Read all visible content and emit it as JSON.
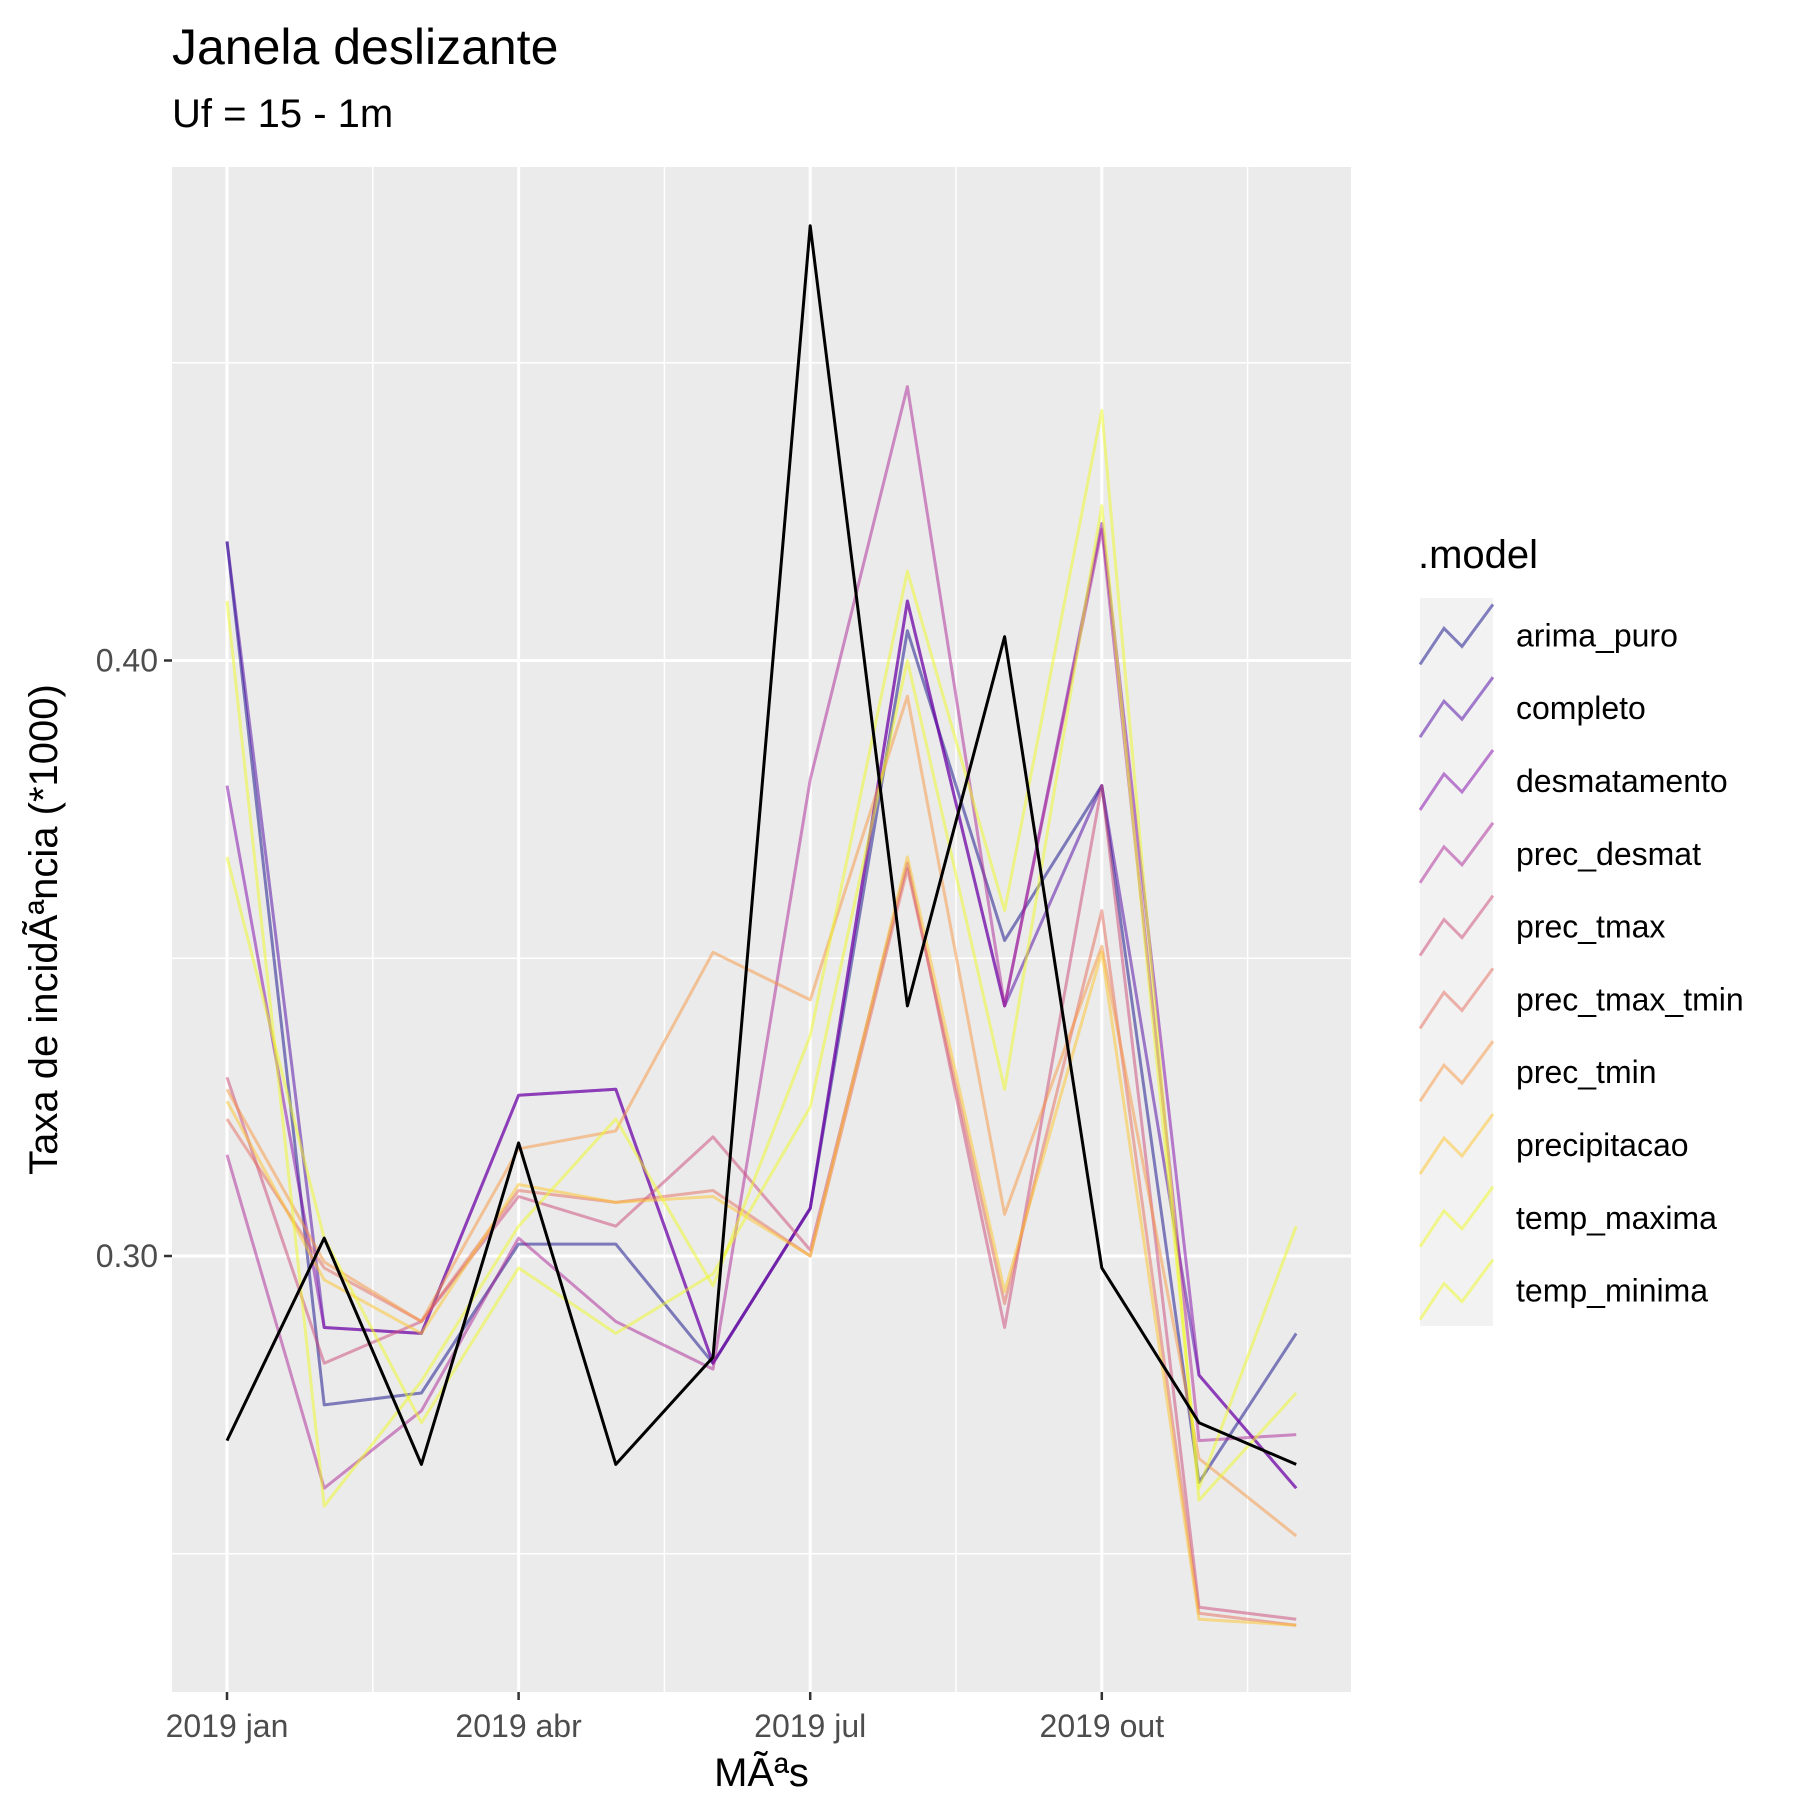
{
  "chart_data": {
    "type": "line",
    "title": "Janela deslizante",
    "subtitle": "Uf = 15 - 1m",
    "xlabel": "MÃªs",
    "ylabel": "Taxa de incidÃªncia (*1000)",
    "x": [
      "2019-01",
      "2019-02",
      "2019-03",
      "2019-04",
      "2019-05",
      "2019-06",
      "2019-07",
      "2019-08",
      "2019-09",
      "2019-10",
      "2019-11",
      "2019-12"
    ],
    "x_ticks": [
      {
        "value": "2019-01",
        "label": "2019 jan"
      },
      {
        "value": "2019-04",
        "label": "2019 abr"
      },
      {
        "value": "2019-07",
        "label": "2019 jul"
      },
      {
        "value": "2019-10",
        "label": "2019 out"
      }
    ],
    "y_ticks": [
      {
        "value": 0.3,
        "label": "0.30"
      },
      {
        "value": 0.4,
        "label": "0.40"
      }
    ],
    "ylim": [
      0.227,
      0.483
    ],
    "grid": true,
    "legend_title": ".model",
    "legend_position": "right",
    "observed": {
      "color": "#000000",
      "values": [
        0.269,
        0.303,
        0.265,
        0.319,
        0.265,
        0.283,
        0.473,
        0.342,
        0.404,
        0.298,
        0.272,
        0.265
      ]
    },
    "series": [
      {
        "name": "arima_puro",
        "color": "#0D0887",
        "values": [
          0.42,
          0.275,
          0.277,
          0.302,
          0.302,
          0.282,
          0.308,
          0.405,
          0.353,
          0.379,
          0.262,
          0.287
        ]
      },
      {
        "name": "completo",
        "color": "#4C02A1",
        "values": [
          0.42,
          0.288,
          0.287,
          0.327,
          0.328,
          0.282,
          0.308,
          0.41,
          0.342,
          0.379,
          0.28,
          0.261
        ]
      },
      {
        "name": "desmatamento",
        "color": "#7E03A8",
        "values": [
          0.379,
          0.288,
          0.287,
          0.327,
          0.328,
          0.282,
          0.308,
          0.41,
          0.342,
          0.423,
          0.28,
          0.261
        ]
      },
      {
        "name": "prec_desmat",
        "color": "#A92395",
        "values": [
          0.317,
          0.261,
          0.274,
          0.303,
          0.289,
          0.281,
          0.38,
          0.446,
          0.342,
          0.422,
          0.269,
          0.27
        ]
      },
      {
        "name": "prec_tmax",
        "color": "#CC4778",
        "values": [
          0.33,
          0.282,
          0.289,
          0.31,
          0.305,
          0.32,
          0.301,
          0.366,
          0.288,
          0.379,
          0.241,
          0.239
        ]
      },
      {
        "name": "prec_tmax_tmin",
        "color": "#E66C5C",
        "values": [
          0.323,
          0.298,
          0.289,
          0.311,
          0.309,
          0.311,
          0.3,
          0.365,
          0.292,
          0.358,
          0.24,
          0.238
        ]
      },
      {
        "name": "prec_tmin",
        "color": "#F89540",
        "values": [
          0.328,
          0.299,
          0.289,
          0.318,
          0.321,
          0.351,
          0.343,
          0.394,
          0.307,
          0.352,
          0.266,
          0.253
        ]
      },
      {
        "name": "precipitacao",
        "color": "#FDC328",
        "values": [
          0.326,
          0.296,
          0.287,
          0.312,
          0.309,
          0.31,
          0.3,
          0.367,
          0.294,
          0.351,
          0.239,
          0.238
        ]
      },
      {
        "name": "temp_maxima",
        "color": "#F0F921",
        "values": [
          0.41,
          0.258,
          0.279,
          0.305,
          0.323,
          0.295,
          0.337,
          0.415,
          0.358,
          0.442,
          0.259,
          0.277
        ]
      },
      {
        "name": "temp_minima",
        "color": "#F0F921",
        "values": [
          0.367,
          0.303,
          0.272,
          0.298,
          0.287,
          0.297,
          0.325,
          0.4,
          0.328,
          0.426,
          0.261,
          0.305
        ]
      }
    ]
  }
}
